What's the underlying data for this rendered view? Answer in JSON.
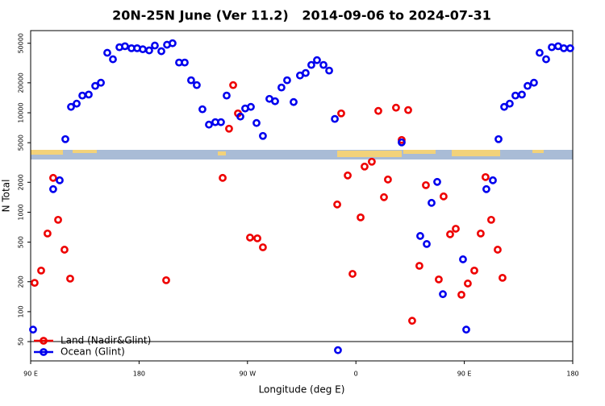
{
  "chart_data": {
    "type": "scatter",
    "title": "20N-25N June (Ver 11.2)   2014-09-06 to 2024-07-31",
    "x_label": "Longitude (deg E)",
    "y_label": "N Total",
    "log_y": true,
    "xlim": [
      90,
      540
    ],
    "xticks": [
      {
        "value": 90,
        "label": "90 E"
      },
      {
        "value": 180,
        "label": "180"
      },
      {
        "value": 270,
        "label": "90 W"
      },
      {
        "value": 360,
        "label": "0"
      },
      {
        "value": 450,
        "label": "90 E"
      },
      {
        "value": 540,
        "label": "180"
      }
    ],
    "ylim": [
      32,
      67000
    ],
    "yticks": [
      50,
      100,
      200,
      500,
      1000,
      2000,
      5000,
      10000,
      20000,
      50000
    ],
    "legend": "bottom-left",
    "series": [
      {
        "name": "Land (Nadir&Glint)",
        "color": "#ee0000",
        "x": [
          93.3,
          98.7,
          104,
          108.7,
          112.8,
          118.1,
          122.8,
          202.5,
          249.4,
          254.7,
          258.1,
          262.1,
          272.1,
          278.2,
          282.8,
          344.5,
          347.8,
          353.2,
          357.2,
          363.9,
          367.2,
          373.2,
          378.6,
          383.3,
          386.6,
          393.3,
          398,
          403.4,
          406.7,
          412.7,
          418.1,
          428.8,
          432.8,
          438.2,
          442.9,
          447.6,
          452.9,
          458.3,
          463.6,
          467.6,
          472.3,
          477.7,
          481.7
        ],
        "values": [
          195,
          259,
          611,
          2214,
          839,
          420,
          215,
          207,
          2214,
          6920,
          18970,
          9860,
          556,
          546,
          444,
          1197,
          9860,
          2343,
          240,
          887,
          2877,
          3221,
          10440,
          1416,
          2133,
          11250,
          5330,
          10640,
          81,
          289,
          1871,
          211,
          1442,
          600,
          682,
          148,
          192,
          259,
          611,
          2255,
          839,
          420,
          219
        ]
      },
      {
        "name": "Ocean (Glint)",
        "color": "#0000ee",
        "x": [
          92,
          108.7,
          114.1,
          118.8,
          123.5,
          128.2,
          132.9,
          138.2,
          143.6,
          148.3,
          153.6,
          158.3,
          163.7,
          168.3,
          173.7,
          178.4,
          183.1,
          188.4,
          193.1,
          198.5,
          203.2,
          207.8,
          213.2,
          217.9,
          223.2,
          227.9,
          232.6,
          238,
          243.3,
          248,
          252.7,
          264.1,
          268.1,
          272.8,
          277.5,
          282.8,
          288.2,
          292.9,
          298.2,
          302.9,
          308.3,
          313.6,
          318.3,
          323,
          327.7,
          333.1,
          337.8,
          342.5,
          345.1,
          398,
          413.4,
          418.8,
          422.8,
          427.5,
          432.2,
          448.9,
          451.6,
          468.3,
          473.7,
          478.4,
          483.1,
          487.7,
          492.4,
          497.8,
          502.5,
          507.8,
          512.5,
          517.9,
          522.6,
          527.9,
          532.6,
          537.9
        ],
        "values": [
          66,
          1706,
          2094,
          5430,
          11460,
          12350,
          14890,
          15240,
          18620,
          20050,
          40090,
          34510,
          45600,
          46670,
          44540,
          44540,
          43500,
          42360,
          47420,
          41590,
          48300,
          50000,
          32000,
          32000,
          21230,
          18970,
          10840,
          7600,
          8040,
          8040,
          14890,
          9160,
          11040,
          11460,
          7890,
          5850,
          13800,
          13060,
          17950,
          21230,
          12820,
          23710,
          25120,
          30270,
          33810,
          30270,
          26550,
          8670,
          41,
          5040,
          577,
          479,
          1242,
          2018,
          150,
          336,
          66,
          1706,
          2094,
          5430,
          11460,
          12350,
          14890,
          15240,
          18620,
          20050,
          40090,
          34510,
          45600,
          46670,
          44540,
          44540
        ]
      }
    ]
  }
}
